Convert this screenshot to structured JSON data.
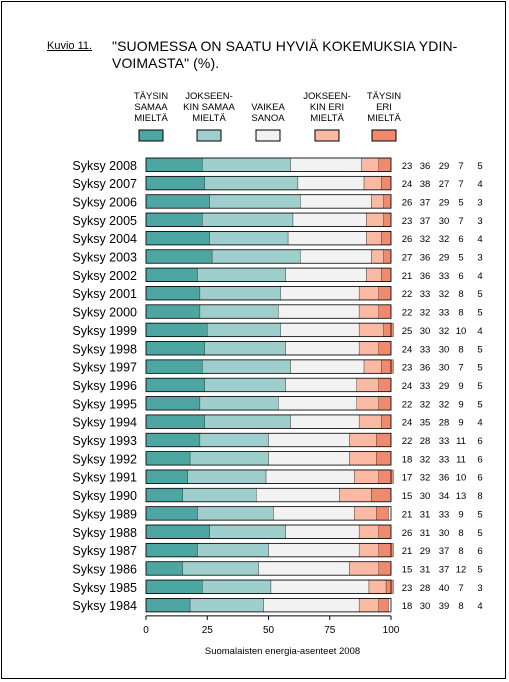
{
  "figure_label": "Kuvio 11.",
  "title_line1": "\"SUOMESSA ON SAATU HYVIÄ KOKEMUKSIA YDIN-",
  "title_line2": "VOIMASTA\" (%).",
  "chart_data": {
    "type": "bar",
    "stacked": true,
    "orientation": "horizontal",
    "xlim": [
      0,
      100
    ],
    "xticks": [
      "0",
      "25",
      "50",
      "75",
      "100"
    ],
    "xlabel": "Suomalaisten energia-asenteet 2008",
    "categories": [
      "Syksy 2008",
      "Syksy 2007",
      "Syksy 2006",
      "Syksy 2005",
      "Syksy 2004",
      "Syksy 2003",
      "Syksy 2002",
      "Syksy 2001",
      "Syksy 2000",
      "Syksy 1999",
      "Syksy 1998",
      "Syksy 1997",
      "Syksy 1996",
      "Syksy 1995",
      "Syksy 1994",
      "Syksy 1993",
      "Syksy 1992",
      "Syksy 1991",
      "Syksy 1990",
      "Syksy 1989",
      "Syksy 1988",
      "Syksy 1987",
      "Syksy 1986",
      "Syksy 1985",
      "Syksy 1984"
    ],
    "series": [
      {
        "name": [
          "TÄYSIN",
          "SAMAA",
          "MIELTÄ"
        ],
        "color": "#4ea6a3",
        "values": [
          23,
          24,
          26,
          23,
          26,
          27,
          21,
          22,
          22,
          25,
          24,
          23,
          24,
          22,
          24,
          22,
          18,
          17,
          15,
          21,
          26,
          21,
          15,
          23,
          18
        ]
      },
      {
        "name": [
          "JOKSEEN-",
          "KIN SAMAA",
          "MIELTÄ"
        ],
        "color": "#9ecfcc",
        "values": [
          36,
          38,
          37,
          37,
          32,
          36,
          36,
          33,
          32,
          30,
          33,
          36,
          33,
          32,
          35,
          28,
          32,
          32,
          30,
          31,
          31,
          29,
          31,
          28,
          30
        ]
      },
      {
        "name": [
          "VAIKEA",
          "SANOA"
        ],
        "color": "#f2f2f2",
        "values": [
          29,
          27,
          29,
          30,
          32,
          29,
          33,
          32,
          33,
          32,
          30,
          30,
          29,
          32,
          28,
          33,
          33,
          36,
          34,
          33,
          30,
          37,
          37,
          40,
          39
        ]
      },
      {
        "name": [
          "JOKSEEN-",
          "KIN ERI",
          "MIELTÄ"
        ],
        "color": "#f9b9a3",
        "values": [
          7,
          7,
          5,
          7,
          6,
          5,
          6,
          8,
          8,
          10,
          8,
          7,
          9,
          9,
          9,
          11,
          11,
          10,
          13,
          9,
          8,
          8,
          12,
          7,
          8
        ]
      },
      {
        "name": [
          "TÄYSIN",
          "ERI",
          "MIELTÄ"
        ],
        "color": "#f08a6e",
        "values": [
          5,
          4,
          3,
          3,
          4,
          3,
          4,
          5,
          5,
          4,
          5,
          5,
          5,
          5,
          4,
          6,
          6,
          6,
          8,
          5,
          5,
          6,
          5,
          3,
          4
        ]
      }
    ]
  }
}
